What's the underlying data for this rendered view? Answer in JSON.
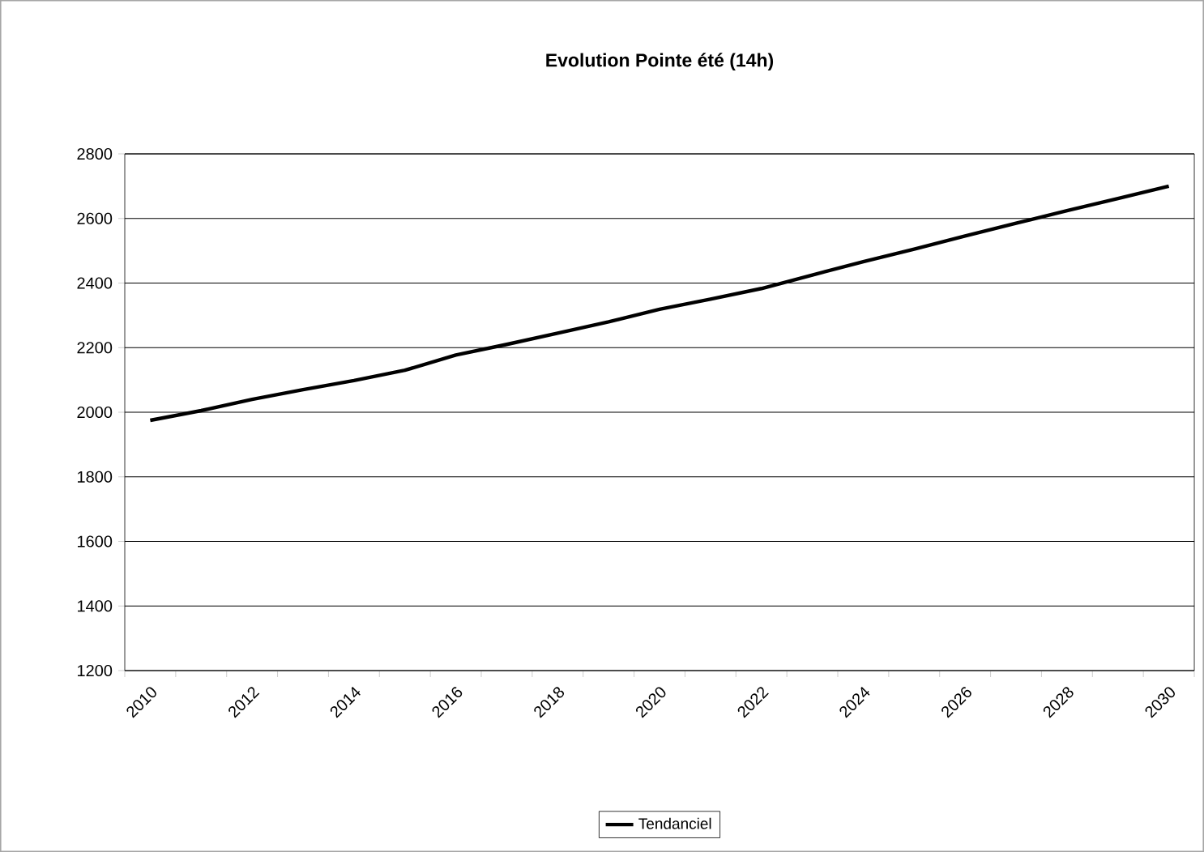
{
  "chart_data": {
    "type": "line",
    "title": "Evolution Pointe été (14h)",
    "categories": [
      "2010",
      null,
      "2012",
      null,
      "2014",
      null,
      "2016",
      null,
      "2018",
      null,
      "2020",
      null,
      "2022",
      null,
      "2024",
      null,
      "2026",
      null,
      "2028",
      null,
      "2030"
    ],
    "series": [
      {
        "name": "Tendanciel",
        "color": "#000000",
        "values": [
          1975,
          2005,
          2040,
          2070,
          2098,
          2130,
          2177,
          2210,
          2245,
          2280,
          2319,
          2350,
          2383,
          2425,
          2466,
          2505,
          2546,
          2585,
          2624,
          2662,
          2700
        ]
      }
    ],
    "ylim": [
      1200,
      2800
    ],
    "yticks": [
      1200,
      1400,
      1600,
      1800,
      2000,
      2200,
      2400,
      2600,
      2800
    ],
    "grid": "y",
    "legend": "bottom",
    "marker": "none",
    "line_style": "solid"
  }
}
